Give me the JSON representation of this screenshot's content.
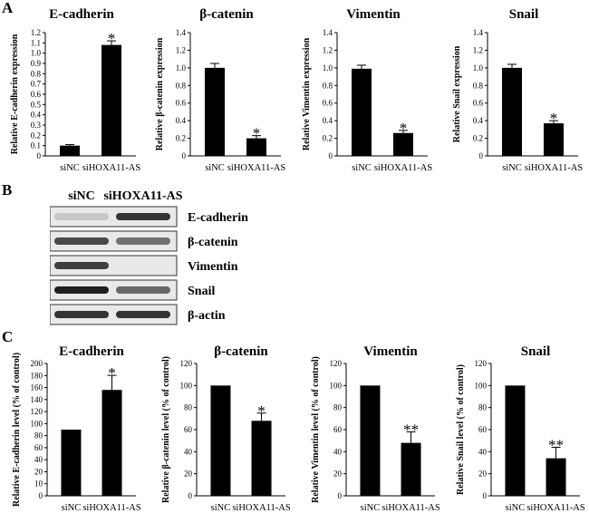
{
  "panels": {
    "a": "A",
    "b": "B",
    "c": "C"
  },
  "categories": [
    "siNC",
    "siHOXA11-AS"
  ],
  "chart_data": [
    {
      "type": "bar",
      "title": "E-cadherin",
      "ylabel": "Relative E-cadherin expression",
      "ylim": [
        0,
        1.2
      ],
      "yticks": [
        "0",
        "0.1",
        "0.2",
        "0.3",
        "0.4",
        "0.5",
        "0.6",
        "0.7",
        "0.8",
        "0.9",
        "1.0",
        "1.1",
        "1.2"
      ],
      "categories": [
        "siNC",
        "siHOXA11-AS"
      ],
      "values": [
        0.1,
        1.08
      ],
      "errors": [
        0.01,
        0.04
      ],
      "sig": [
        "",
        "*"
      ]
    },
    {
      "type": "bar",
      "title": "β-catenin",
      "ylabel": "Relative β-catenin expression",
      "ylim": [
        0,
        1.4
      ],
      "yticks": [
        "0",
        "0.2",
        "0.4",
        "0.6",
        "0.8",
        "1.0",
        "1.2",
        "1.4"
      ],
      "categories": [
        "siNC",
        "siHOXA11-AS"
      ],
      "values": [
        1.0,
        0.2
      ],
      "errors": [
        0.05,
        0.03
      ],
      "sig": [
        "",
        "*"
      ]
    },
    {
      "type": "bar",
      "title": "Vimentin",
      "ylabel": "Relative Vimentin expression",
      "ylim": [
        0,
        1.4
      ],
      "yticks": [
        "0",
        "0.2",
        "0.4",
        "0.6",
        "0.8",
        "1.0",
        "1.2",
        "1.4"
      ],
      "categories": [
        "siNC",
        "siHOXA11-AS"
      ],
      "values": [
        0.99,
        0.26
      ],
      "errors": [
        0.04,
        0.03
      ],
      "sig": [
        "",
        "*"
      ]
    },
    {
      "type": "bar",
      "title": "Snail",
      "ylabel": "Relative Snail expression",
      "ylim": [
        0,
        1.4
      ],
      "yticks": [
        "0",
        "0.2",
        "0.4",
        "0.6",
        "0.8",
        "1.0",
        "1.2",
        "1.4"
      ],
      "categories": [
        "siNC",
        "siHOXA11-AS"
      ],
      "values": [
        1.0,
        0.37
      ],
      "errors": [
        0.04,
        0.03
      ],
      "sig": [
        "",
        "*"
      ]
    },
    {
      "type": "bar",
      "title": "E-cadherin",
      "ylabel": "Relative E-cadherin level (% of control)",
      "ylim": [
        0,
        200
      ],
      "yticks": [
        "0",
        "10",
        "20",
        "40",
        "60",
        "80",
        "100",
        "120",
        "140",
        "160",
        "180",
        "200"
      ],
      "categories": [
        "siNC",
        "siHOXA11-AS"
      ],
      "values": [
        100,
        160
      ],
      "errors": [
        0,
        22
      ],
      "sig": [
        "",
        "*"
      ]
    },
    {
      "type": "bar",
      "title": "β-catenin",
      "ylabel": "Relative β-catenin level (% of control)",
      "ylim": [
        0,
        120
      ],
      "yticks": [
        "0",
        "20",
        "40",
        "60",
        "80",
        "100",
        "120"
      ],
      "categories": [
        "siNC",
        "siHOXA11-AS"
      ],
      "values": [
        100,
        68
      ],
      "errors": [
        0,
        7
      ],
      "sig": [
        "",
        "*"
      ]
    },
    {
      "type": "bar",
      "title": "Vimentin",
      "ylabel": "Relative Vimentin level (% of control)",
      "ylim": [
        0,
        120
      ],
      "yticks": [
        "0",
        "20",
        "40",
        "60",
        "80",
        "100",
        "120"
      ],
      "categories": [
        "siNC",
        "siHOXA11-AS"
      ],
      "values": [
        100,
        48
      ],
      "errors": [
        0,
        10
      ],
      "sig": [
        "",
        "**"
      ]
    },
    {
      "type": "bar",
      "title": "Snail",
      "ylabel": "Relative Snail level (% of control)",
      "ylim": [
        0,
        120
      ],
      "yticks": [
        "0",
        "20",
        "40",
        "60",
        "80",
        "100",
        "120"
      ],
      "categories": [
        "siNC",
        "siHOXA11-AS"
      ],
      "values": [
        100,
        34
      ],
      "errors": [
        0,
        10
      ],
      "sig": [
        "",
        "**"
      ]
    }
  ],
  "blot": {
    "lanes": [
      "siNC",
      "siHOXA11-AS"
    ],
    "proteins": [
      {
        "name": "E-cadherin",
        "intensity": [
          0.15,
          0.85
        ]
      },
      {
        "name": "β-catenin",
        "intensity": [
          0.75,
          0.55
        ]
      },
      {
        "name": "Vimentin",
        "intensity": [
          0.8,
          0.0
        ]
      },
      {
        "name": "Snail",
        "intensity": [
          0.95,
          0.6
        ]
      },
      {
        "name": "β-actin",
        "intensity": [
          0.85,
          0.85
        ]
      }
    ]
  }
}
